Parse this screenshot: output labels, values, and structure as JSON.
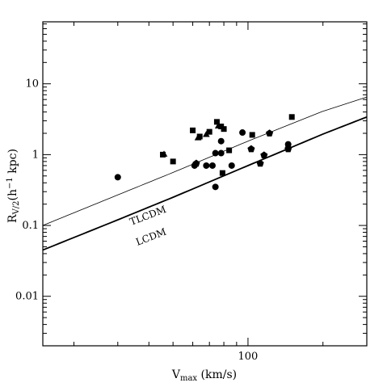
{
  "chart_data": {
    "type": "scatter",
    "title": "",
    "xlabel": "V_max (km/s)",
    "xlabel_parts": {
      "main": "V",
      "sub": "max",
      "rest": " (km/s)"
    },
    "ylabel": "R_V/2(h^-1 kpc)",
    "ylabel_parts": {
      "main": "R",
      "sub": "V/2",
      "pre": "(h",
      "sup": "−1",
      "post": " kpc)"
    },
    "xscale": "log",
    "yscale": "log",
    "xlim": [
      15,
      300
    ],
    "ylim": [
      0.002,
      75
    ],
    "grid": false,
    "x_ticklabels": [
      {
        "value": 100,
        "label": "100"
      }
    ],
    "y_ticklabels": [
      {
        "value": 0.01,
        "label": "0.01"
      },
      {
        "value": 0.1,
        "label": "0.1"
      },
      {
        "value": 1,
        "label": "1"
      },
      {
        "value": 10,
        "label": "10"
      }
    ],
    "curves": [
      {
        "name": "TLCDM",
        "label_at": [
          34,
          0.1
        ],
        "label_angle": -21,
        "style": "thin",
        "x": [
          15,
          30,
          50,
          100,
          200,
          300
        ],
        "y": [
          0.1,
          0.27,
          0.56,
          1.55,
          4.1,
          6.5
        ]
      },
      {
        "name": "LCDM",
        "label_at": [
          36,
          0.052
        ],
        "label_angle": -21,
        "style": "thick",
        "x": [
          15,
          30,
          50,
          100,
          200,
          300
        ],
        "y": [
          0.045,
          0.12,
          0.25,
          0.7,
          1.95,
          3.4
        ]
      }
    ],
    "series": [
      {
        "marker": "square",
        "points": [
          [
            45.5,
            1.0
          ],
          [
            50,
            0.8
          ],
          [
            60,
            2.2
          ],
          [
            64,
            1.8
          ],
          [
            70,
            2.1
          ],
          [
            75,
            2.9
          ],
          [
            78,
            2.5
          ],
          [
            80,
            2.3
          ],
          [
            79,
            0.55
          ],
          [
            84,
            1.15
          ],
          [
            104,
            1.9
          ],
          [
            150,
            3.4
          ],
          [
            145,
            1.25
          ]
        ]
      },
      {
        "marker": "circle",
        "points": [
          [
            30,
            0.48
          ],
          [
            61,
            0.7
          ],
          [
            68,
            0.7
          ],
          [
            72,
            0.7
          ],
          [
            74,
            1.05
          ],
          [
            74,
            0.35
          ],
          [
            78,
            1.55
          ],
          [
            78,
            1.05
          ],
          [
            86,
            0.7
          ],
          [
            95,
            2.05
          ],
          [
            145,
            1.4
          ]
        ]
      },
      {
        "marker": "triangle",
        "points": [
          [
            46,
            1.0
          ],
          [
            63,
            1.7
          ],
          [
            68,
            1.9
          ],
          [
            76,
            2.5
          ]
        ]
      },
      {
        "marker": "pentagon",
        "points": [
          [
            62,
            0.75
          ],
          [
            103,
            1.2
          ],
          [
            112,
            0.75
          ],
          [
            116,
            0.98
          ],
          [
            122,
            2.0
          ],
          [
            145,
            1.2
          ]
        ]
      }
    ]
  }
}
